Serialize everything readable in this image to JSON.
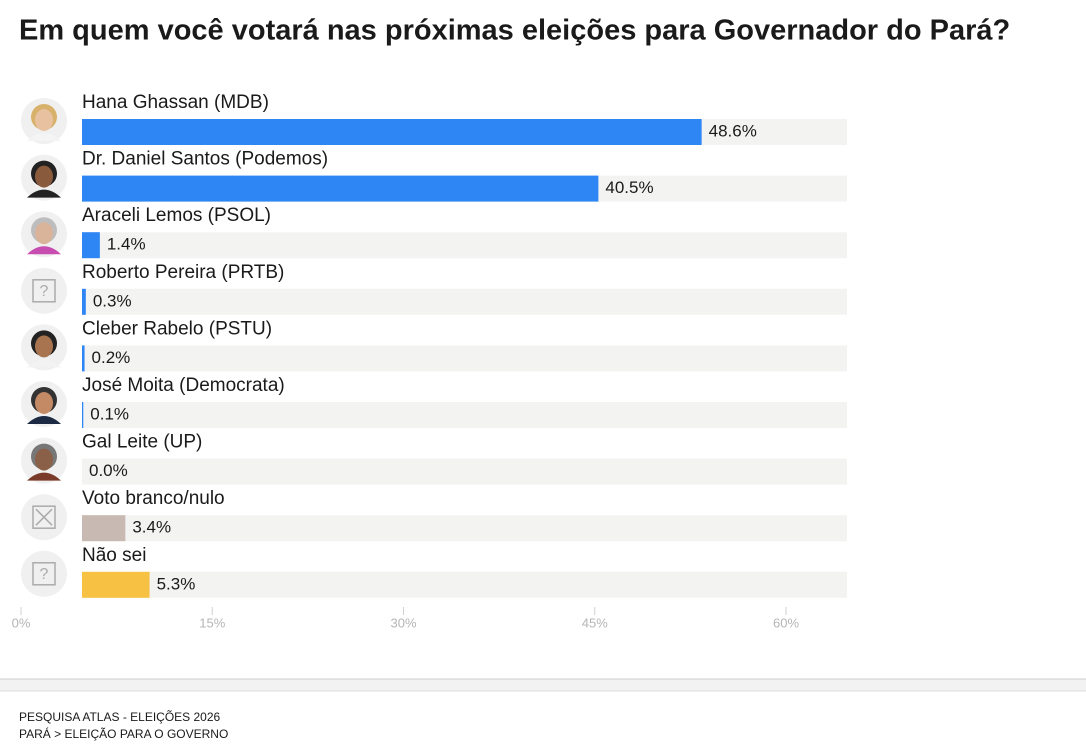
{
  "chart_data": {
    "type": "hbar",
    "title": "Em quem você votará nas próximas eleições para Governador do Pará?",
    "categories": [
      "Hana Ghassan (MDB)",
      "Dr. Daniel Santos (Podemos)",
      "Araceli Lemos (PSOL)",
      "Roberto Pereira (PRTB)",
      "Cleber Rabelo (PSTU)",
      "José Moita (Democrata)",
      "Gal Leite (UP)",
      "Voto branco/nulo",
      "Não sei"
    ],
    "values": [
      48.6,
      40.5,
      1.4,
      0.3,
      0.2,
      0.1,
      0.0,
      3.4,
      5.3
    ],
    "value_labels": [
      "48.6%",
      "40.5%",
      "1.4%",
      "0.3%",
      "0.2%",
      "0.1%",
      "0.0%",
      "3.4%",
      "5.3%"
    ],
    "colors": [
      "#2e86f5",
      "#2e86f5",
      "#2e86f5",
      "#2e86f5",
      "#2e86f5",
      "#2e86f5",
      "#2e86f5",
      "#c8b9b2",
      "#f7c244"
    ],
    "xlim": [
      0,
      60
    ],
    "xticks": [
      {
        "value": 0,
        "label": "0%"
      },
      {
        "value": 15,
        "label": "15%"
      },
      {
        "value": 30,
        "label": "30%"
      },
      {
        "value": 45,
        "label": "45%"
      },
      {
        "value": 60,
        "label": "60%"
      }
    ]
  },
  "footer": {
    "source": "PESQUISA ATLAS - ELEIÇÕES 2026",
    "breadcrumb": "PARÁ > ELEIÇÃO PARA O GOVERNO"
  }
}
